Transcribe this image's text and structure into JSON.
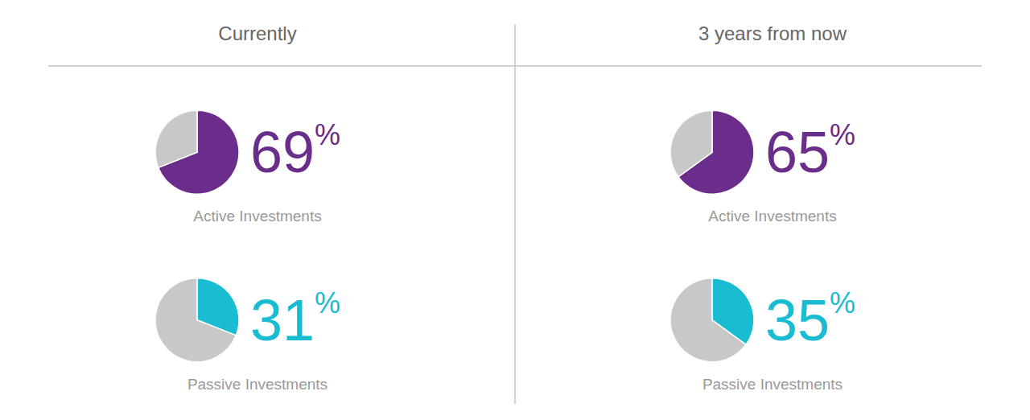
{
  "chart_data": [
    {
      "type": "pie",
      "title": "Currently",
      "series": [
        {
          "name": "Active Investments",
          "values": [
            69,
            31
          ],
          "colors": [
            "#6B2D8B",
            "#C8C8C8"
          ],
          "value_labels": [
            "69%",
            null
          ]
        },
        {
          "name": "Passive Investments",
          "values": [
            31,
            69
          ],
          "colors": [
            "#1ABCD2",
            "#C8C8C8"
          ],
          "value_labels": [
            "31%",
            null
          ]
        }
      ],
      "data_labels": true
    },
    {
      "type": "pie",
      "title": "3 years from now",
      "series": [
        {
          "name": "Active Investments",
          "values": [
            65,
            35
          ],
          "colors": [
            "#6B2D8B",
            "#C8C8C8"
          ],
          "value_labels": [
            "65%",
            null
          ]
        },
        {
          "name": "Passive Investments",
          "values": [
            35,
            65
          ],
          "colors": [
            "#1ABCD2",
            "#C8C8C8"
          ],
          "value_labels": [
            "35%",
            null
          ]
        }
      ],
      "data_labels": true
    }
  ]
}
